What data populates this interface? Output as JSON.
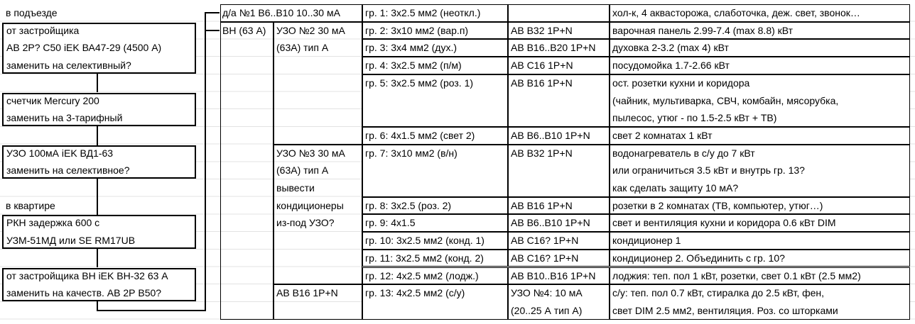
{
  "left": {
    "labels": [
      "в подъезде",
      "в квартире"
    ],
    "boxes": [
      {
        "lines": [
          "от застройщика",
          "АВ 2Р? C50 iEK ВА47-29 (4500 А)",
          "заменить на селективный?"
        ]
      },
      {
        "lines": [
          "счетчик Mercury 200",
          "заменить на 3-тарифный"
        ]
      },
      {
        "lines": [
          "УЗО 100мА iEK ВД1-63",
          "заменить на селективное?"
        ]
      },
      {
        "lines": [
          "РКН задержка 600 с",
          "УЗМ-51МД или SE RM17UB"
        ]
      },
      {
        "lines": [
          "от застройщика ВН iEK ВН-32 63 А",
          "заменить на качеств. АВ 2Р В50?"
        ]
      }
    ]
  },
  "right": {
    "first": {
      "device": "д/а №1 В6..В10 10..30 мА",
      "group": "гр. 1: 3х2.5 мм2 (неоткл.)",
      "load": "хол-к, 4 аквасторожа, слаботочка, деж. свет, звонок…"
    },
    "main": "ВН (63 А)",
    "branches": [
      {
        "device": [
          "УЗО №2 30 мА",
          "(63А) тип А"
        ],
        "groups": [
          {
            "group": "гр. 2: 3х10 мм2 (вар.п)",
            "breaker": [
              "АВ В32 1Р+N"
            ],
            "load": [
              "варочная панель 2.99-7.4 (max 8.8) кВт"
            ]
          },
          {
            "group": "гр. 3: 3х4 мм2 (дух.)",
            "breaker": [
              "АВ В16..В20 1Р+N"
            ],
            "load": [
              "духовка 2-3.2 (max 4) кВт"
            ]
          },
          {
            "group": "гр. 4: 3х2.5 мм2 (п/м)",
            "breaker": [
              "АВ С16 1Р+N"
            ],
            "load": [
              "посудомойка 1.7-2.66 кВт"
            ]
          },
          {
            "group": "гр. 5: 3х2.5 мм2 (роз. 1)",
            "breaker": [
              "АВ В16 1Р+N"
            ],
            "load": [
              "ост. розетки кухни и коридора",
              "(чайник, мультиварка, СВЧ, комбайн, мясорубка,",
              "пылесос, утюг - по 1.5-2.5 кВт + ТВ)"
            ]
          },
          {
            "group": "гр. 6: 4х1.5 мм2 (свет 2)",
            "breaker": [
              "АВ В6..В10 1Р+N"
            ],
            "load": [
              "свет 2 комнатах 1 кВт"
            ]
          }
        ]
      },
      {
        "device": [
          "УЗО №3 30 мА",
          "(63А) тип А",
          "вывести",
          "кондиционеры",
          "из-под УЗО?"
        ],
        "groups": [
          {
            "group": "гр. 7: 3х10 мм2 (в/н)",
            "breaker": [
              "АВ В32 1Р+N"
            ],
            "load": [
              "водонагреватель в с/у до 7 кВт",
              "или ограничиться 3.5 кВт и внутрь гр. 13?",
              "как сделать защиту 10 мА?"
            ]
          },
          {
            "group": "гр. 8: 3х2.5 (роз. 2)",
            "breaker": [
              "АВ В16 1Р+N"
            ],
            "load": [
              "розетки в 2 комнатах (ТВ, компьютер, утюг…)"
            ]
          },
          {
            "group": "гр. 9: 4х1.5",
            "breaker": [
              "АВ В6..В10 1Р+N"
            ],
            "load": [
              "свет и вентиляция кухни и коридора 0.6 кВт DIM"
            ]
          },
          {
            "group": "гр. 10: 3х2.5 мм2 (конд. 1)",
            "breaker": [
              "АВ С16? 1Р+N"
            ],
            "load": [
              "кондиционер 1"
            ]
          },
          {
            "group": "гр. 11: 3х2.5 мм2 (конд. 2)",
            "breaker": [
              "АВ С16? 1Р+N"
            ],
            "load": [
              "кондиционер 2. Объединить с гр. 10?"
            ]
          },
          {
            "group": "гр. 12: 4х2.5 мм2 (лодж.)",
            "breaker": [
              "АВ В10..В16 1Р+N"
            ],
            "load": [
              "лоджия: теп. пол 1 кВт, розетки, свет 0.1 кВт (2.5 мм2)"
            ]
          }
        ]
      },
      {
        "device": [
          "АВ В16 1Р+N"
        ],
        "groups": [
          {
            "group": "гр. 13: 4х2.5 мм2 (с/у)",
            "breaker": [
              "УЗО №4: 10 мА",
              "(20..25 А тип А)"
            ],
            "load": [
              "с/у: теп. пол 0.7 кВт, стиралка до 2.5 кВт, фен,",
              "свет DIM 2.5 мм2, вентиляция. Роз. со шторками"
            ]
          }
        ]
      }
    ]
  }
}
